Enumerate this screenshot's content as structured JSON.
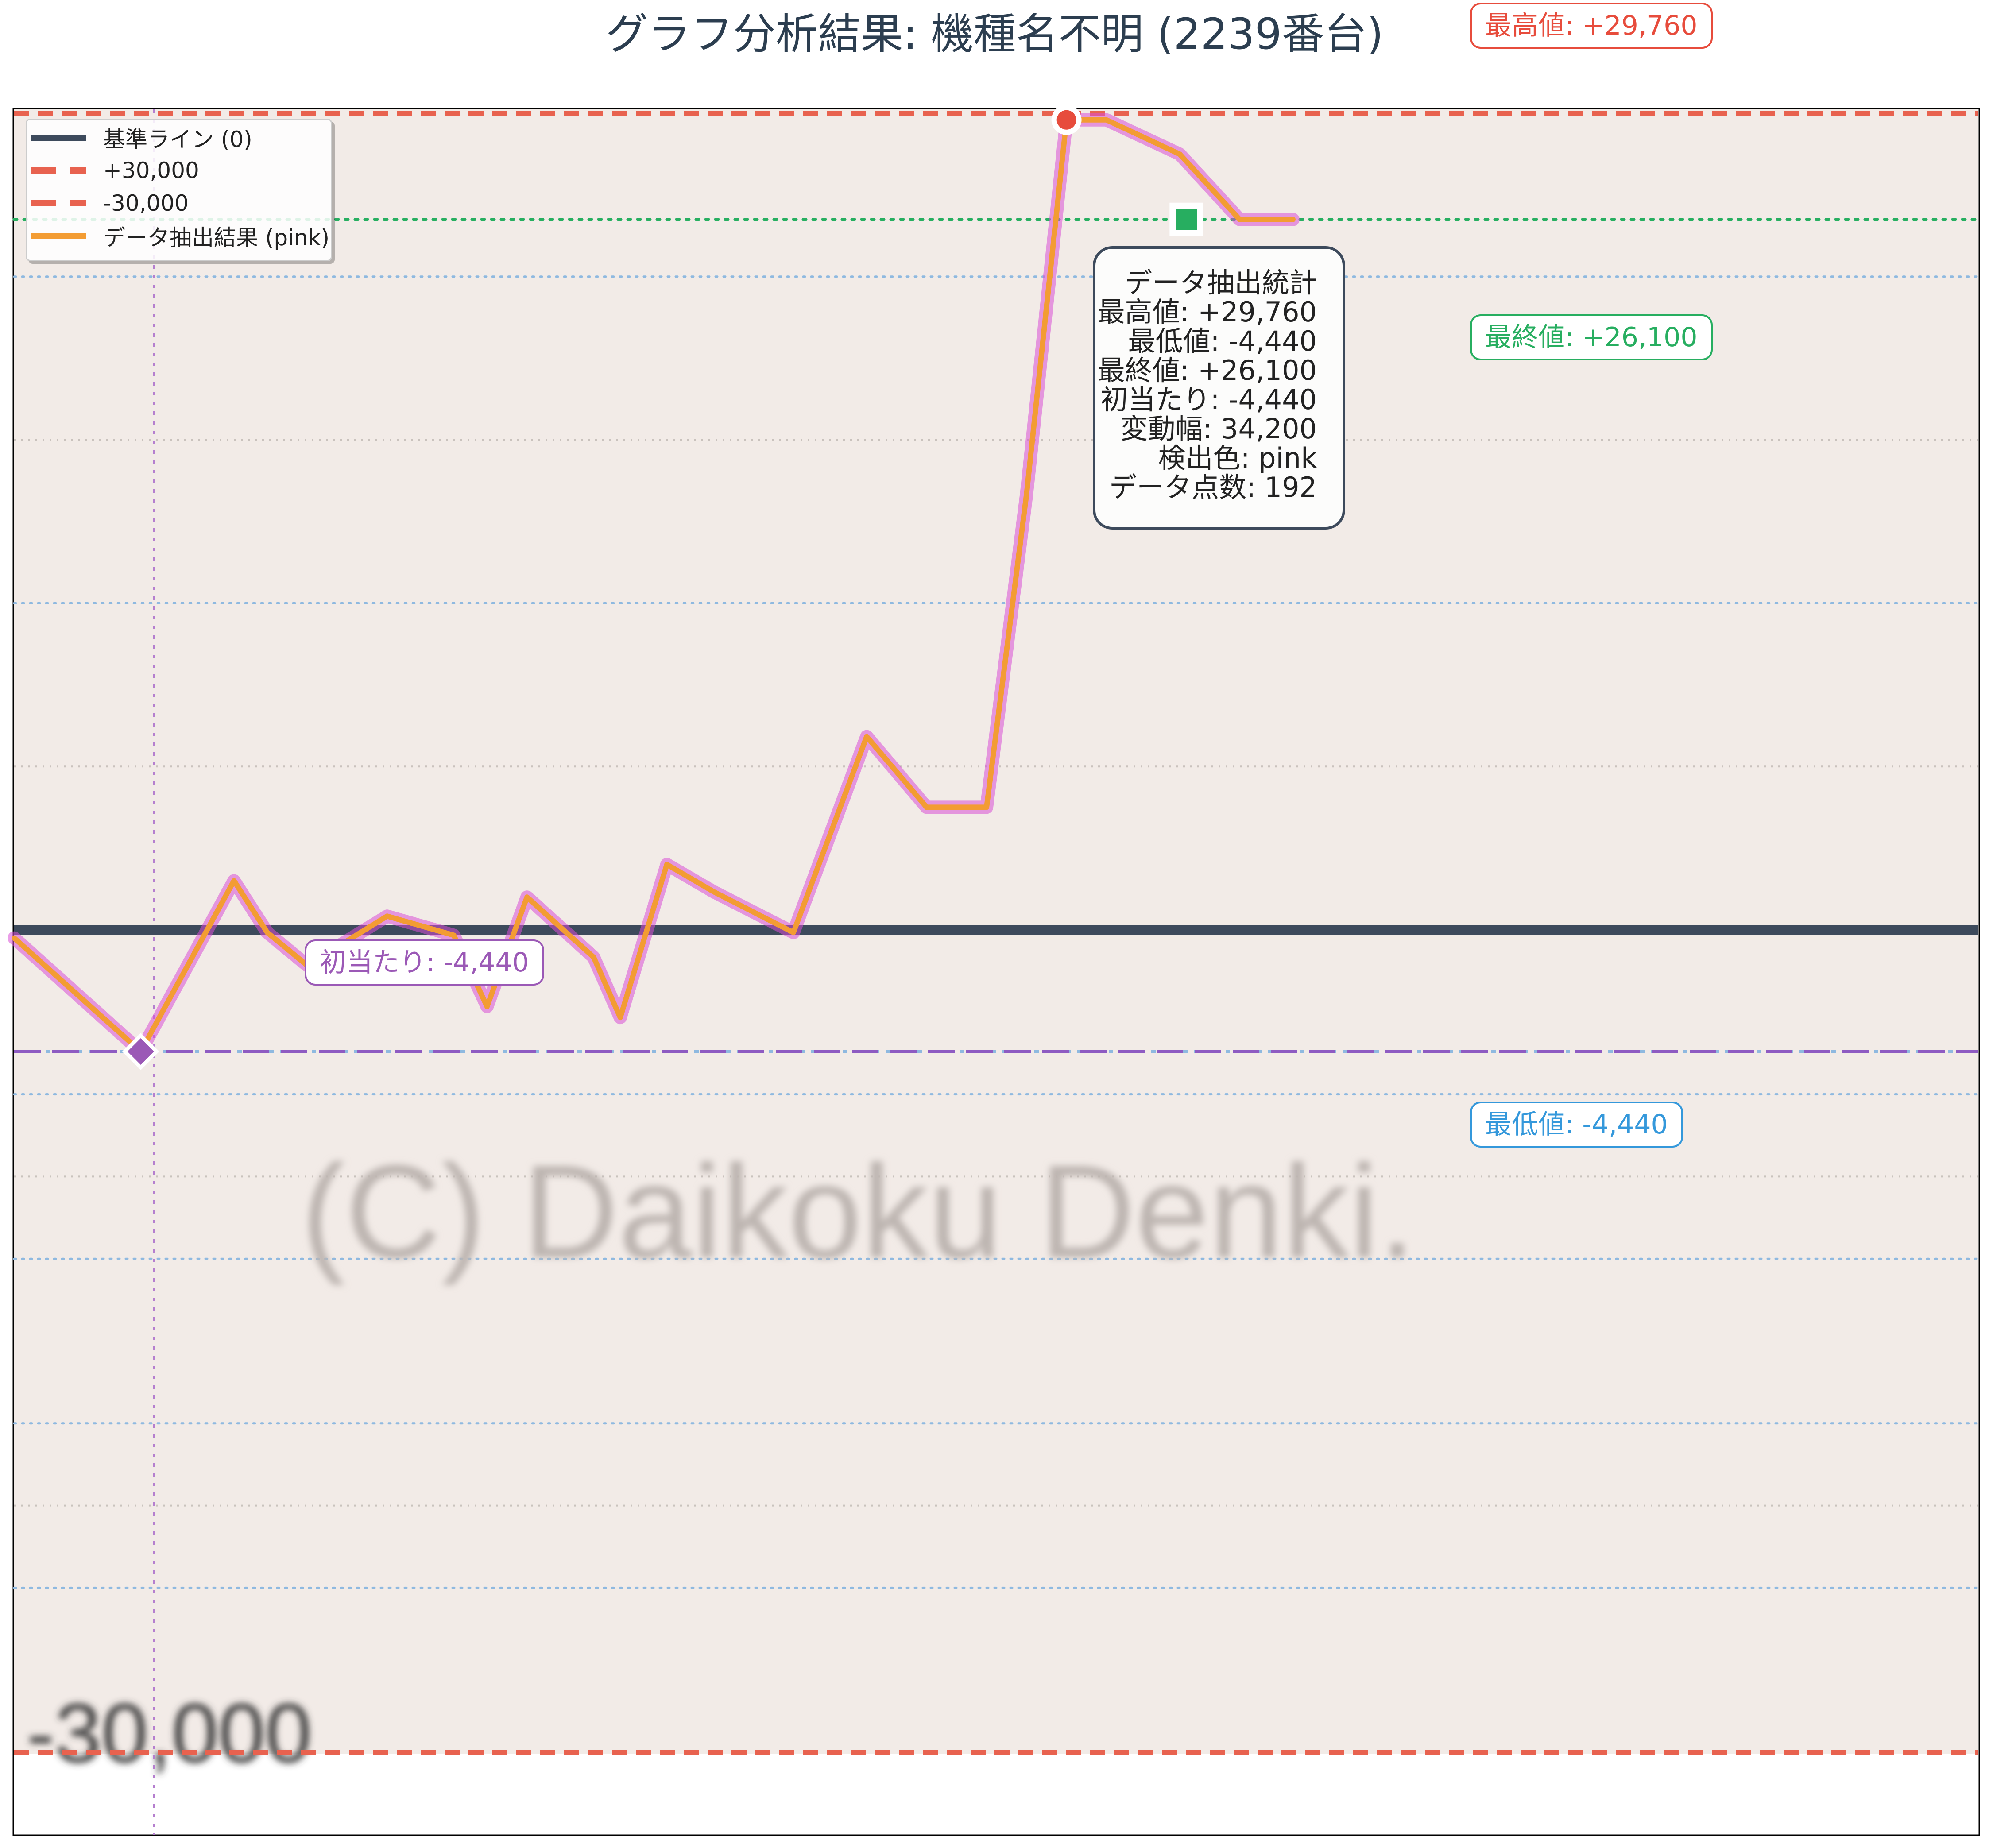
{
  "header": {
    "title": "グラフ分析結果: 機種名不明 (2239番台)"
  },
  "badges": {
    "max": "最高値: +29,760",
    "final": "最終値: +26,100",
    "min": "最低値: -4,440",
    "first_hit": "初当たり: -4,440"
  },
  "legend": [
    {
      "label": "基準ライン (0)"
    },
    {
      "label": "+30,000"
    },
    {
      "label": "-30,000"
    },
    {
      "label": "データ抽出結果 (pink)"
    }
  ],
  "stats_box": {
    "heading": "データ抽出統計",
    "lines": [
      "最高値: +29,760",
      "最低値: -4,440",
      "最終値: +26,100",
      "初当たり: -4,440",
      "変動幅: 34,200",
      "検出色: pink",
      "データ点数: 192"
    ]
  },
  "background": {
    "watermark": "(C) Daikoku Denki.",
    "source_label": "-30,000"
  },
  "colors": {
    "plot_bg": "#f2ebe7",
    "baseline": "#3d4a5c",
    "limit_lines": "#e8624f",
    "series": "#f39c33",
    "series_glow": "#d94fd6",
    "final_line": "#27ae60",
    "min_line": "#8e5bc2",
    "grid": "#8fb9e0"
  },
  "chart_data": {
    "type": "line",
    "title": "グラフ分析結果: 機種名不明 (2239番台)",
    "xlabel": "",
    "ylabel": "",
    "ylim": [
      -30000,
      30000
    ],
    "series": [
      {
        "name": "データ抽出結果 (pink)",
        "x": [
          0,
          19,
          33,
          38,
          44,
          56,
          66,
          71,
          77,
          87,
          91,
          98,
          105,
          117,
          128,
          137,
          146,
          152,
          158,
          164,
          175,
          184,
          188,
          192
        ],
        "y": [
          -300,
          -4440,
          1800,
          -100,
          -1300,
          500,
          -200,
          -2800,
          1200,
          -1000,
          -3200,
          2400,
          1400,
          -100,
          7100,
          4500,
          4500,
          16000,
          29760,
          29760,
          28500,
          26100,
          26100,
          26100
        ]
      }
    ],
    "reference_lines": [
      {
        "name": "基準ライン (0)",
        "y": 0
      },
      {
        "name": "+30,000",
        "y": 30000
      },
      {
        "name": "-30,000",
        "y": -30000
      },
      {
        "name": "最終値",
        "y": 26100
      },
      {
        "name": "最低値",
        "y": -4440
      }
    ],
    "markers": [
      {
        "name": "初当たり",
        "x": 19,
        "y": -4440
      },
      {
        "name": "最高値",
        "x": 158,
        "y": 29760
      },
      {
        "name": "最終値",
        "x": 176,
        "y": 26100
      }
    ],
    "legend_position": "top-left",
    "grid": true
  }
}
